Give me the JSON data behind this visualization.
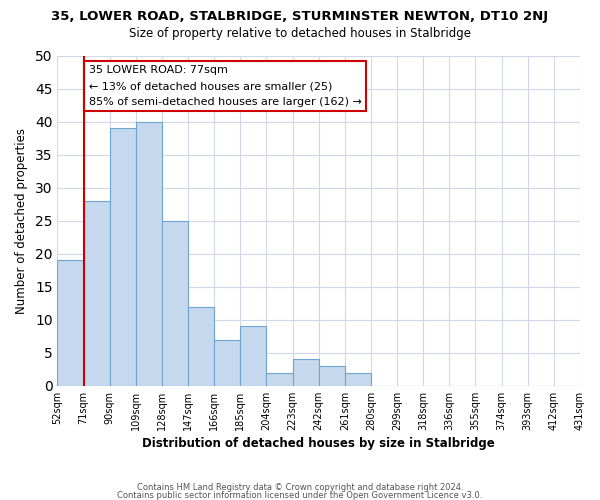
{
  "title": "35, LOWER ROAD, STALBRIDGE, STURMINSTER NEWTON, DT10 2NJ",
  "subtitle": "Size of property relative to detached houses in Stalbridge",
  "xlabel": "Distribution of detached houses by size in Stalbridge",
  "ylabel": "Number of detached properties",
  "footer_line1": "Contains HM Land Registry data © Crown copyright and database right 2024.",
  "footer_line2": "Contains public sector information licensed under the Open Government Licence v3.0.",
  "bin_labels": [
    "52sqm",
    "71sqm",
    "90sqm",
    "109sqm",
    "128sqm",
    "147sqm",
    "166sqm",
    "185sqm",
    "204sqm",
    "223sqm",
    "242sqm",
    "261sqm",
    "280sqm",
    "299sqm",
    "318sqm",
    "336sqm",
    "355sqm",
    "374sqm",
    "393sqm",
    "412sqm",
    "431sqm"
  ],
  "bar_values": [
    19,
    28,
    39,
    40,
    25,
    12,
    7,
    9,
    2,
    4,
    3,
    2,
    0,
    0,
    0,
    0,
    0,
    0,
    0,
    0
  ],
  "bar_color": "#c5d8ed",
  "bar_edge_color": "#6ea6d0",
  "ylim": [
    0,
    50
  ],
  "yticks": [
    0,
    5,
    10,
    15,
    20,
    25,
    30,
    35,
    40,
    45,
    50
  ],
  "vline_x": 1,
  "vline_color": "#cc0000",
  "annotation_title": "35 LOWER ROAD: 77sqm",
  "annotation_line1": "← 13% of detached houses are smaller (25)",
  "annotation_line2": "85% of semi-detached houses are larger (162) →",
  "annotation_box_color": "#ffffff",
  "annotation_box_edge": "#cc0000",
  "background_color": "#ffffff",
  "grid_color": "#d0d8e8"
}
